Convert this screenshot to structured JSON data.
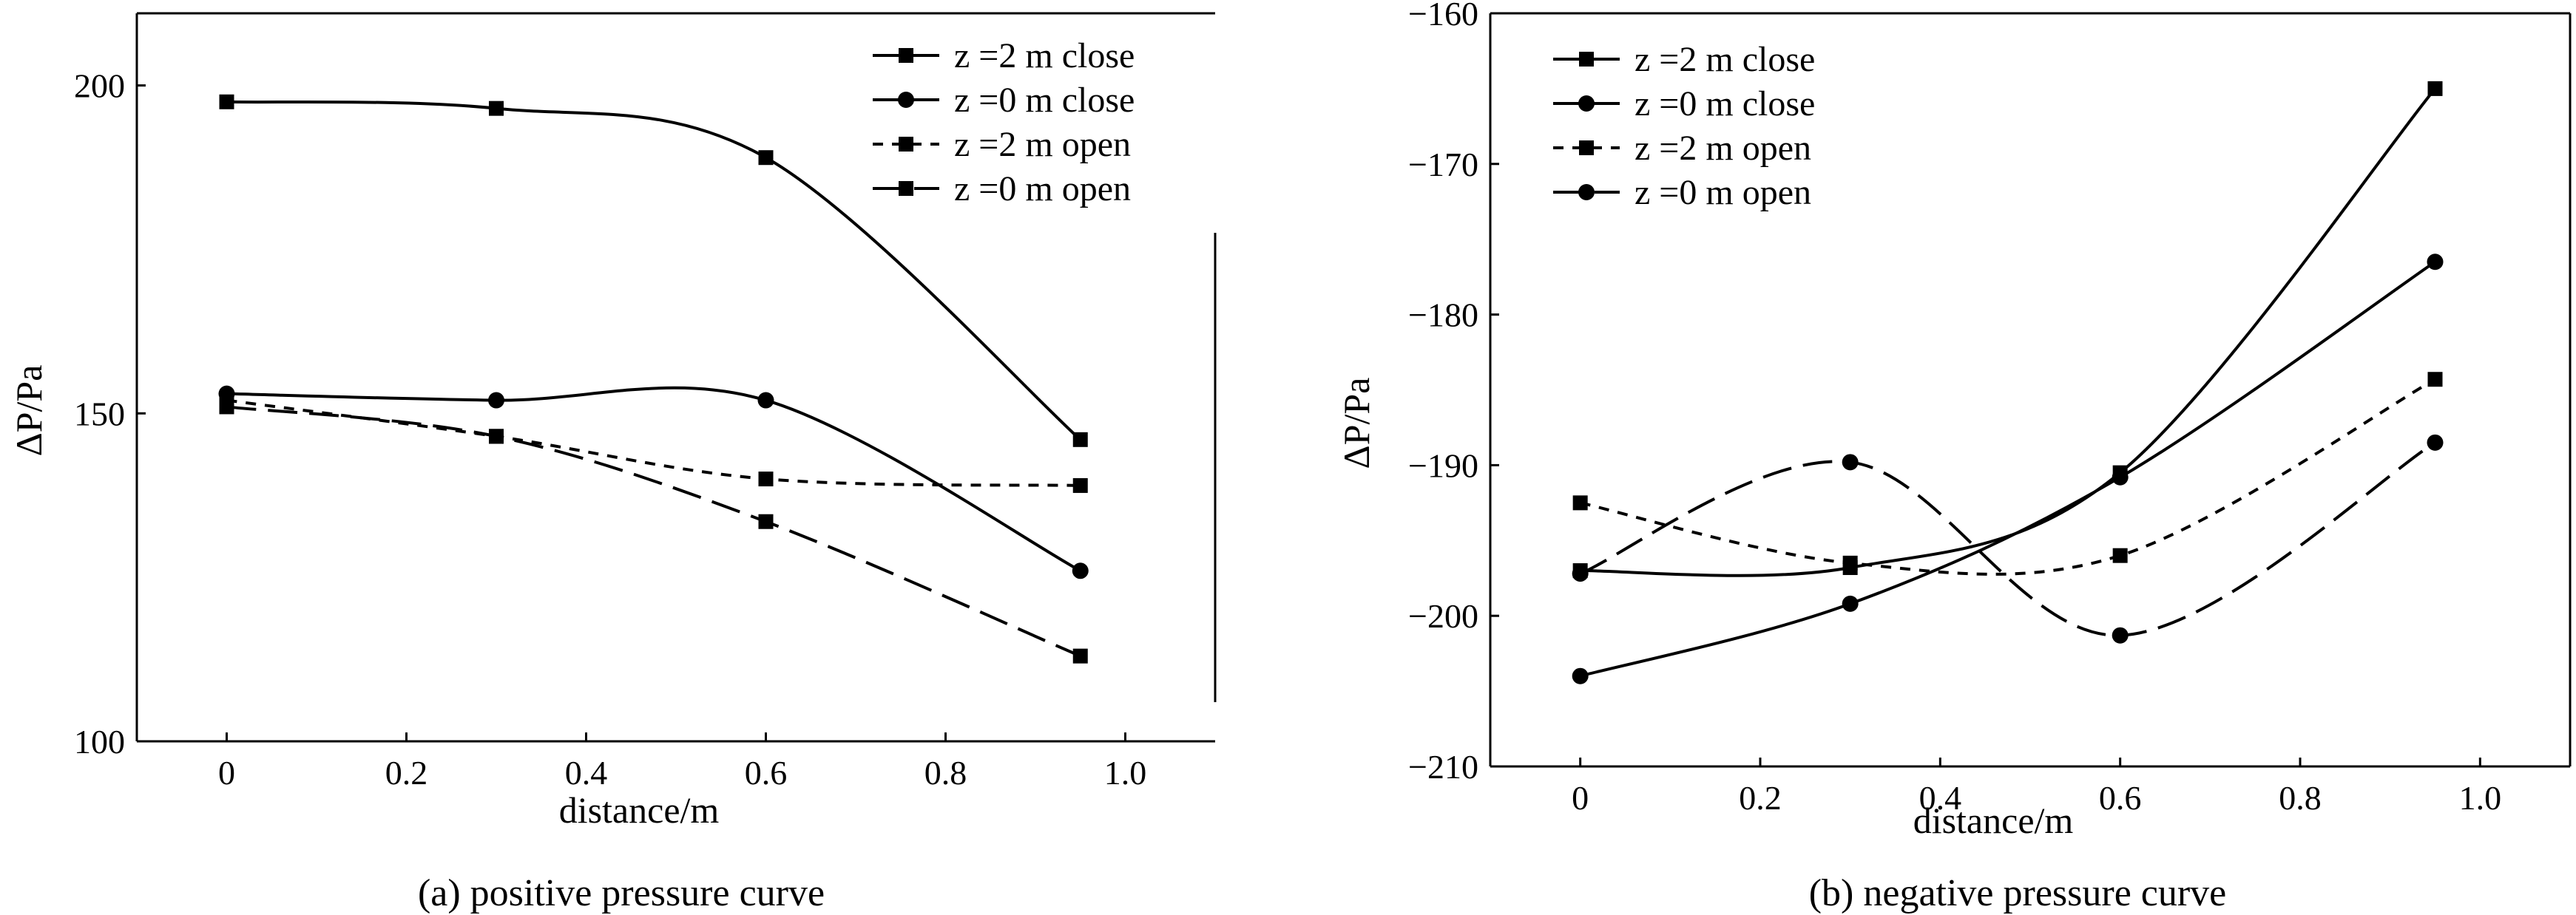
{
  "chart_data": [
    {
      "type": "line",
      "caption": "(a) positive pressure curve",
      "title": "",
      "xlabel": "distance/m",
      "ylabel": "ΔP/Pa",
      "xlim": [
        -0.1,
        1.1
      ],
      "ylim": [
        100,
        211
      ],
      "xticks": [
        0,
        0.2,
        0.4,
        0.6,
        0.8,
        1.0
      ],
      "xtick_labels": [
        "0",
        "0.2",
        "0.4",
        "0.6",
        "0.8",
        "1.0"
      ],
      "yticks": [
        100,
        150,
        200
      ],
      "ytick_labels": [
        "100",
        "150",
        "200"
      ],
      "grid": false,
      "legend_position": "top-right",
      "x": [
        0,
        0.3,
        0.6,
        0.95
      ],
      "series": [
        {
          "name": "z =2 m close",
          "values": [
            197.5,
            196.5,
            189,
            146
          ],
          "marker": "square",
          "dash": "solid"
        },
        {
          "name": "z =0 m close",
          "values": [
            153,
            152,
            152,
            126
          ],
          "marker": "circle",
          "dash": "solid"
        },
        {
          "name": "z =2 m open",
          "values": [
            152,
            146.5,
            140,
            139
          ],
          "marker": "square",
          "dash": "short-dash"
        },
        {
          "name": "z =0 m open",
          "values": [
            151,
            146.5,
            133.5,
            113
          ],
          "marker": "square",
          "dash": "long-dash"
        }
      ]
    },
    {
      "type": "line",
      "caption": "(b) negative pressure curve",
      "title": "",
      "xlabel": "distance/m",
      "ylabel": "ΔP/Pa",
      "xlim": [
        -0.1,
        1.1
      ],
      "ylim": [
        -210,
        -160
      ],
      "xticks": [
        0,
        0.2,
        0.4,
        0.6,
        0.8,
        1.0
      ],
      "xtick_labels": [
        "0",
        "0.2",
        "0.4",
        "0.6",
        "0.8",
        "1.0"
      ],
      "yticks": [
        -210,
        -200,
        -190,
        -180,
        -170,
        -160
      ],
      "ytick_labels": [
        "−210",
        "−200",
        "−190",
        "−180",
        "−170",
        "−160"
      ],
      "grid": false,
      "legend_position": "top-left",
      "x": [
        0,
        0.3,
        0.6,
        0.95
      ],
      "series": [
        {
          "name": "z =2 m close",
          "values": [
            -197,
            -196.8,
            -190.5,
            -165
          ],
          "marker": "square",
          "dash": "solid"
        },
        {
          "name": "z =0 m close",
          "values": [
            -204,
            -199.2,
            -190.8,
            -176.5
          ],
          "marker": "circle",
          "dash": "solid"
        },
        {
          "name": "z =2 m open",
          "values": [
            -192.5,
            -196.5,
            -196,
            -184.3
          ],
          "marker": "square",
          "dash": "short-dash"
        },
        {
          "name": "z =0 m open",
          "values": [
            -197.2,
            -189.8,
            -201.3,
            -188.5
          ],
          "marker": "circle",
          "dash": "long-dash"
        }
      ]
    }
  ]
}
